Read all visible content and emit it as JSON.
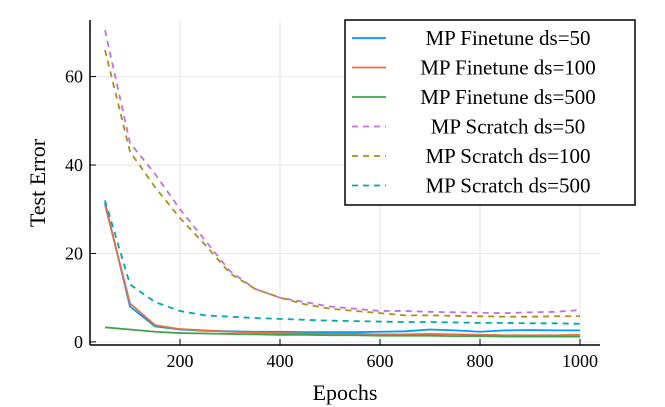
{
  "chart_data": {
    "type": "line",
    "title": "",
    "xlabel": "Epochs",
    "ylabel": "Test Error",
    "xlim": [
      20,
      1040
    ],
    "ylim": [
      -0.7,
      72.8
    ],
    "xticks": [
      200,
      400,
      600,
      800,
      1000
    ],
    "yticks": [
      0,
      20,
      40,
      60
    ],
    "grid": true,
    "legend_position": "top-right",
    "x": [
      50,
      100,
      150,
      200,
      250,
      300,
      350,
      400,
      450,
      500,
      550,
      600,
      650,
      700,
      750,
      800,
      850,
      900,
      950,
      1000
    ],
    "series": [
      {
        "name": "MP Finetune ds=50",
        "color": "#009AFA",
        "dash": false,
        "values": [
          31.5,
          8,
          3.5,
          2.8,
          2.5,
          2.4,
          2.3,
          2.3,
          2.2,
          2.2,
          2.2,
          2.3,
          2.4,
          2.8,
          2.6,
          2.3,
          2.6,
          2.7,
          2.6,
          2.6
        ]
      },
      {
        "name": "MP Finetune ds=100",
        "color": "#E36F47",
        "dash": false,
        "values": [
          31,
          8.7,
          3.8,
          2.9,
          2.6,
          2.3,
          2.1,
          2.0,
          1.9,
          1.8,
          1.8,
          1.7,
          1.7,
          1.8,
          1.7,
          1.6,
          1.5,
          1.5,
          1.5,
          1.6
        ]
      },
      {
        "name": "MP Finetune ds=500",
        "color": "#3EA44E",
        "dash": false,
        "values": [
          3.3,
          2.8,
          2.3,
          2.0,
          1.9,
          1.8,
          1.7,
          1.6,
          1.6,
          1.5,
          1.5,
          1.4,
          1.4,
          1.4,
          1.3,
          1.3,
          1.2,
          1.2,
          1.2,
          1.2
        ]
      },
      {
        "name": "MP Scratch ds=50",
        "color": "#C371D2",
        "dash": true,
        "values": [
          70.5,
          45,
          38,
          30,
          23,
          16,
          12,
          10,
          9,
          8,
          7.5,
          7,
          7,
          6.8,
          6.7,
          6.6,
          6.5,
          6.7,
          6.8,
          7.2
        ]
      },
      {
        "name": "MP Scratch ds=100",
        "color": "#AC8E18",
        "dash": true,
        "values": [
          66,
          43,
          35,
          28,
          22,
          15.5,
          12,
          10,
          8.5,
          7.5,
          7,
          6.5,
          6,
          6,
          5.9,
          5.8,
          5.7,
          5.7,
          5.8,
          5.8
        ]
      },
      {
        "name": "MP Scratch ds=500",
        "color": "#00A9AD",
        "dash": true,
        "values": [
          32,
          13,
          9,
          7,
          6,
          5.7,
          5.4,
          5.2,
          5,
          4.8,
          4.7,
          4.6,
          4.5,
          4.5,
          4.4,
          4.3,
          4.3,
          4.2,
          4.2,
          4.1
        ]
      }
    ]
  }
}
